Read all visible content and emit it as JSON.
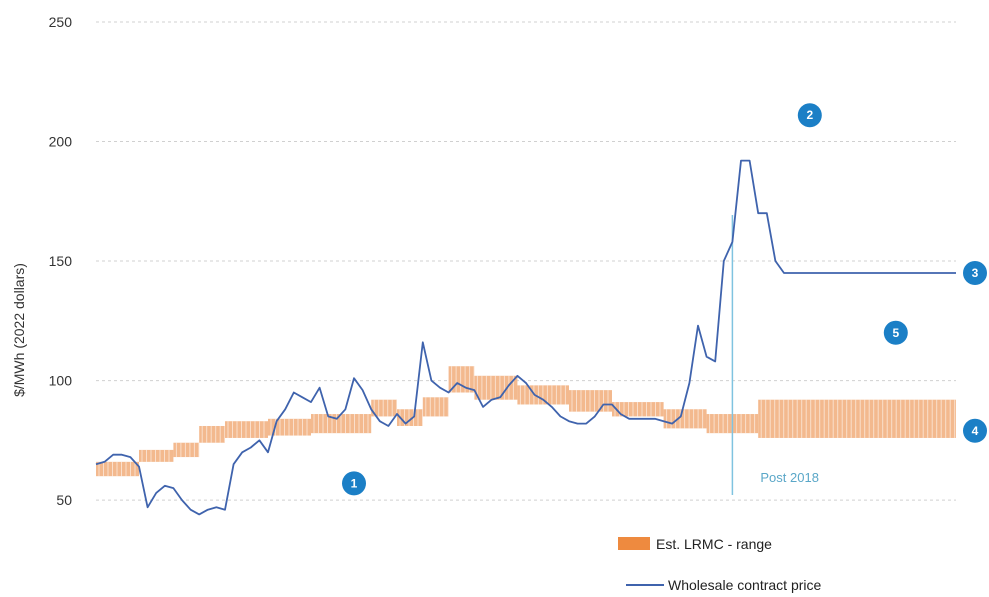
{
  "chart_data": {
    "type": "line",
    "title": "",
    "xlabel": "",
    "ylabel": "$/MWh (2022 dollars)",
    "ylim": [
      40,
      250
    ],
    "yticks": [
      50,
      100,
      150,
      200,
      250
    ],
    "grid": true,
    "legend_position": "bottom-right",
    "colors": {
      "price_line": "#3f63ad",
      "lrmc_band": "#f3b98e",
      "lrmc_stripe": "#ffffff",
      "legend_swatch": "#ee8a3f",
      "marker_fill": "#1b7fc6",
      "divider_line": "#7fc3e0",
      "grid": "#d0d0d0"
    },
    "series": [
      {
        "name": "Wholesale contract price",
        "type": "line",
        "x": [
          0,
          1,
          2,
          3,
          4,
          5,
          6,
          7,
          8,
          9,
          10,
          11,
          12,
          13,
          14,
          15,
          16,
          17,
          18,
          19,
          20,
          21,
          22,
          23,
          24,
          25,
          26,
          27,
          28,
          29,
          30,
          31,
          32,
          33,
          34,
          35,
          36,
          37,
          38,
          39,
          40,
          41,
          42,
          43,
          44,
          45,
          46,
          47,
          48,
          49,
          50,
          51,
          52,
          53,
          54,
          55,
          56,
          57,
          58,
          59,
          60,
          61,
          62,
          63,
          64,
          65,
          66,
          67,
          68,
          69,
          70,
          71,
          72,
          73,
          74,
          75,
          76,
          77,
          78,
          79,
          80,
          81,
          82,
          83,
          84,
          85,
          86,
          87,
          88,
          89,
          90,
          91,
          92,
          93,
          94,
          95,
          96,
          97,
          98,
          99,
          100
        ],
        "values": [
          65,
          66,
          69,
          69,
          68,
          64,
          47,
          53,
          56,
          55,
          50,
          46,
          44,
          46,
          47,
          46,
          65,
          70,
          72,
          75,
          70,
          83,
          88,
          95,
          93,
          91,
          97,
          85,
          84,
          88,
          101,
          96,
          88,
          83,
          81,
          86,
          82,
          85,
          116,
          100,
          97,
          95,
          99,
          97,
          96,
          89,
          92,
          93,
          98,
          102,
          99,
          94,
          92,
          89,
          85,
          83,
          82,
          82,
          85,
          90,
          90,
          86,
          84,
          84,
          84,
          84,
          83,
          82,
          85,
          99,
          123,
          110,
          108,
          150,
          158,
          192,
          192,
          170,
          170,
          150,
          145,
          145,
          145,
          145,
          145,
          145,
          145,
          145,
          145,
          145,
          145,
          145,
          145,
          145,
          145,
          145,
          145,
          145,
          145,
          145,
          145
        ]
      },
      {
        "name": "Est. LRMC - range",
        "type": "range",
        "segments": [
          {
            "x0": 0,
            "x1": 5,
            "low": 60,
            "high": 66
          },
          {
            "x0": 5,
            "x1": 9,
            "low": 66,
            "high": 71
          },
          {
            "x0": 9,
            "x1": 12,
            "low": 68,
            "high": 74
          },
          {
            "x0": 12,
            "x1": 15,
            "low": 74,
            "high": 81
          },
          {
            "x0": 15,
            "x1": 20,
            "low": 76,
            "high": 83
          },
          {
            "x0": 20,
            "x1": 25,
            "low": 77,
            "high": 84
          },
          {
            "x0": 25,
            "x1": 32,
            "low": 78,
            "high": 86
          },
          {
            "x0": 32,
            "x1": 35,
            "low": 85,
            "high": 92
          },
          {
            "x0": 35,
            "x1": 38,
            "low": 81,
            "high": 88
          },
          {
            "x0": 38,
            "x1": 41,
            "low": 85,
            "high": 93
          },
          {
            "x0": 41,
            "x1": 44,
            "low": 95,
            "high": 106
          },
          {
            "x0": 44,
            "x1": 49,
            "low": 92,
            "high": 102
          },
          {
            "x0": 49,
            "x1": 55,
            "low": 90,
            "high": 98
          },
          {
            "x0": 55,
            "x1": 60,
            "low": 87,
            "high": 96
          },
          {
            "x0": 60,
            "x1": 66,
            "low": 85,
            "high": 91
          },
          {
            "x0": 66,
            "x1": 71,
            "low": 80,
            "high": 88
          },
          {
            "x0": 71,
            "x1": 77,
            "low": 78,
            "high": 86
          },
          {
            "x0": 77,
            "x1": 100,
            "low": 76,
            "high": 92
          }
        ]
      }
    ],
    "divider": {
      "x": 74,
      "label": "Post 2018"
    },
    "markers": [
      {
        "label": "1",
        "x": 30,
        "y": 57
      },
      {
        "label": "2",
        "x": 83,
        "y": 211
      },
      {
        "label": "3",
        "x": 104,
        "y": 145
      },
      {
        "label": "4",
        "x": 104,
        "y": 79
      },
      {
        "label": "5",
        "x": 93,
        "y": 120
      }
    ]
  }
}
